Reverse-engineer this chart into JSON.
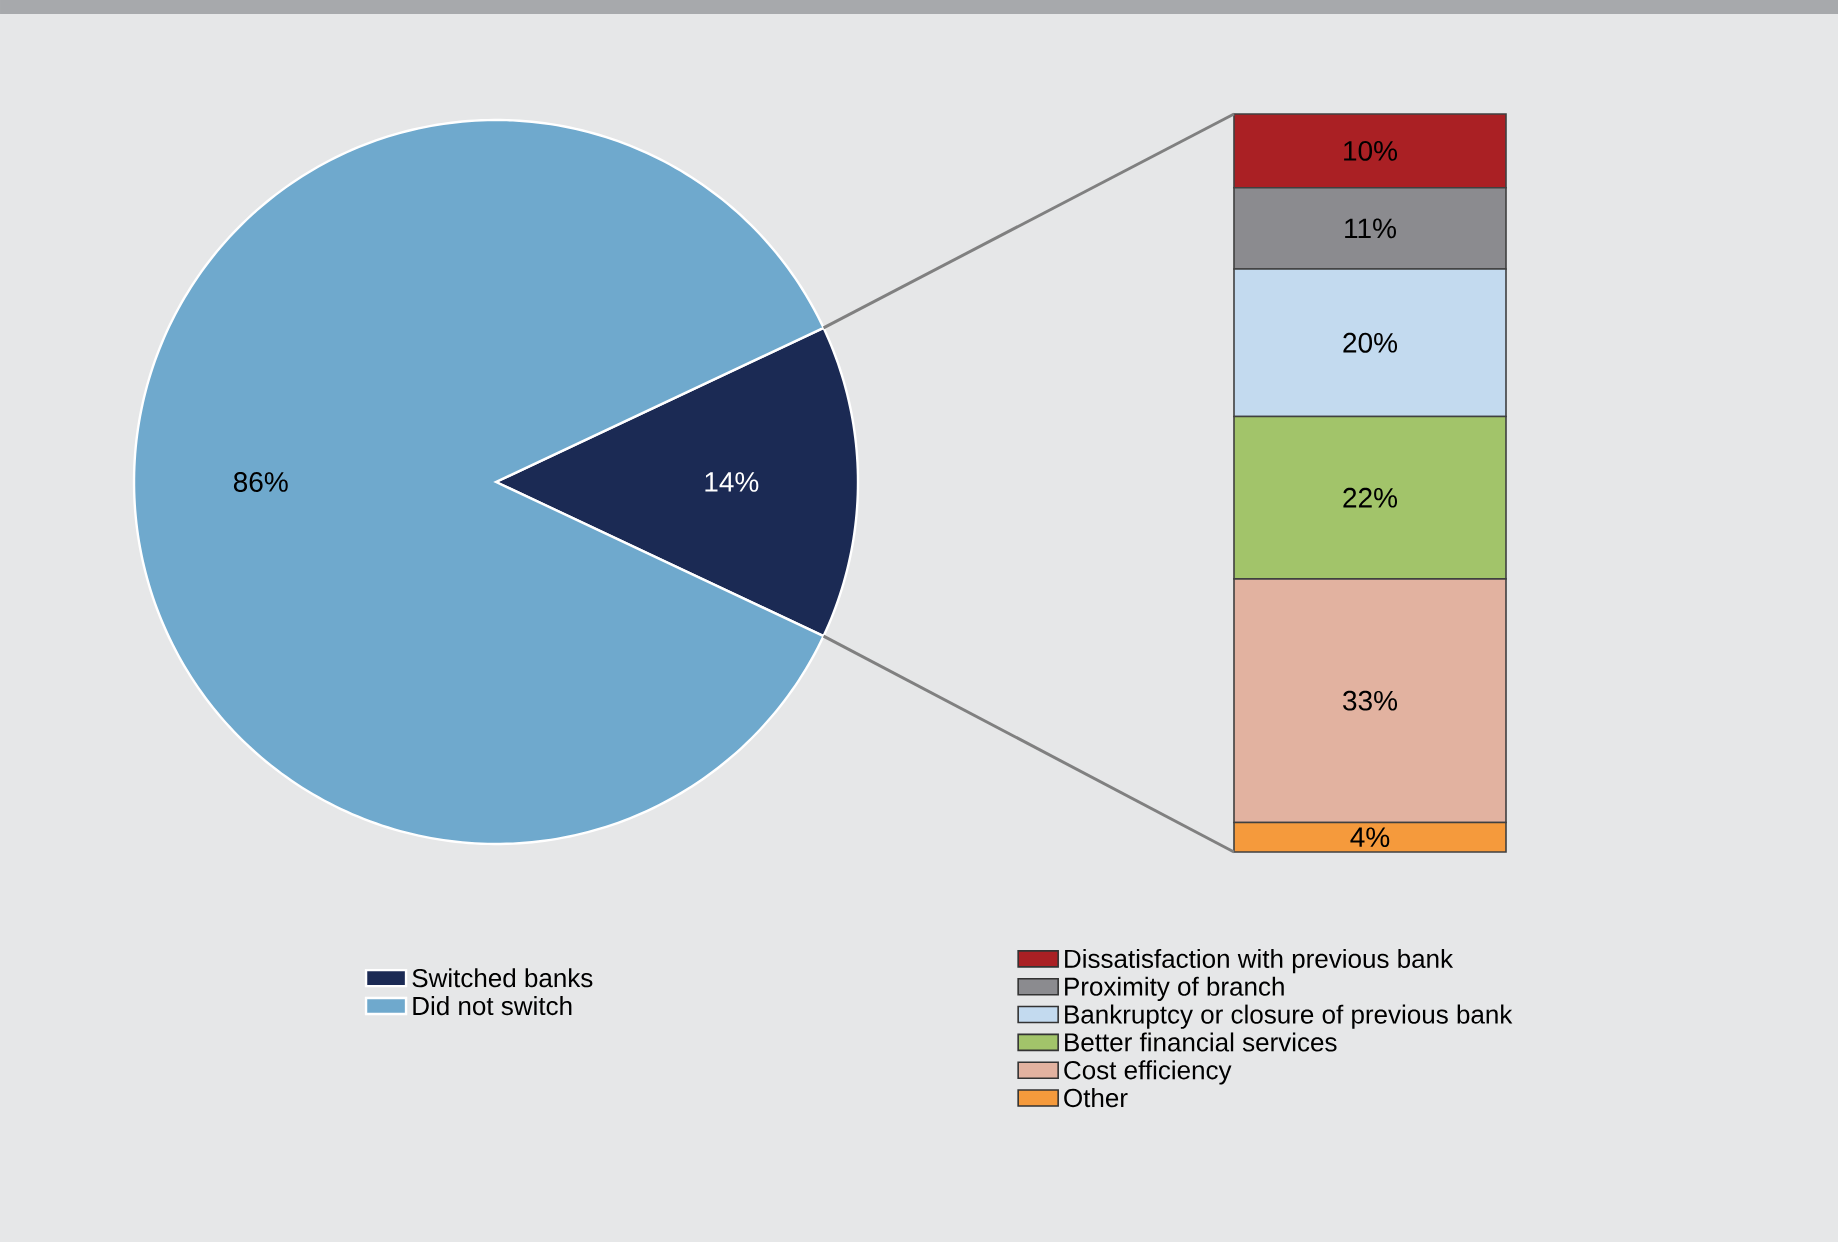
{
  "chart_data": [
    {
      "type": "pie",
      "categories": [
        "Switched banks",
        "Did not switch"
      ],
      "values": [
        14,
        86
      ],
      "colors": [
        "#1b2a54",
        "#6fa9cd"
      ],
      "value_labels": [
        "14%",
        "86%"
      ],
      "legend": "bottom"
    },
    {
      "type": "bar",
      "stacked": true,
      "categories": [
        null
      ],
      "tick_labels": false,
      "legend": "bottom",
      "series": [
        {
          "name": "Other",
          "color": "#f59a3c",
          "values": [
            4
          ],
          "value_labels": [
            "4%"
          ]
        },
        {
          "name": "Cost efficiency",
          "color": "#e2b2a0",
          "values": [
            33
          ],
          "value_labels": [
            "33%"
          ]
        },
        {
          "name": "Better financial services",
          "color": "#a2c46a",
          "values": [
            22
          ],
          "value_labels": [
            "22%"
          ]
        },
        {
          "name": "Bankruptcy or closure of previous bank",
          "color": "#c3daef",
          "values": [
            20
          ],
          "value_labels": [
            "20%"
          ]
        },
        {
          "name": "Proximity of branch",
          "color": "#8b8b8f",
          "values": [
            11
          ],
          "value_labels": [
            "11%"
          ]
        },
        {
          "name": "Dissatisfaction with previous bank",
          "color": "#aa2024",
          "values": [
            10
          ],
          "value_labels": [
            "10%"
          ]
        }
      ]
    }
  ]
}
